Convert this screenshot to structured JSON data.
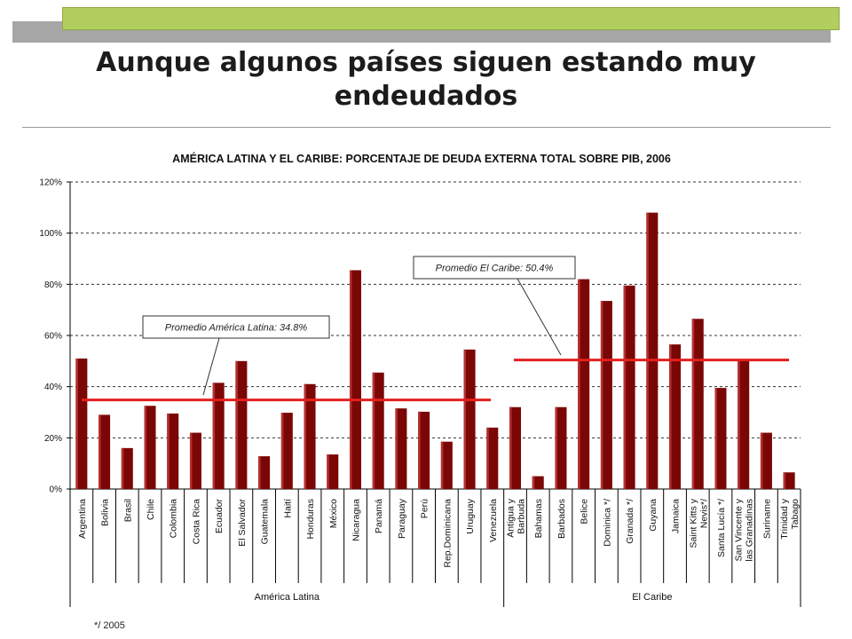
{
  "slide": {
    "title": "Aunque algunos países siguen estando muy endeudados",
    "footnote": "*/ 2005"
  },
  "colors": {
    "bar": "#7b0606",
    "bar_highlight": "#b43030",
    "average_line": "#e32020",
    "banner": "#b2ce5f",
    "banner_shadow": "#a6a6a6"
  },
  "chart_data": {
    "type": "bar",
    "title": "AMÉRICA LATINA Y EL CARIBE: PORCENTAJE DE DEUDA EXTERNA TOTAL SOBRE PIB, 2006",
    "ylim": [
      0,
      120
    ],
    "yticks": [
      0,
      20,
      40,
      60,
      80,
      100,
      120
    ],
    "ytick_labels": [
      "0%",
      "20%",
      "40%",
      "60%",
      "80%",
      "100%",
      "120%"
    ],
    "grid": true,
    "categories": [
      "Argentina",
      "Bolivia",
      "Brasil",
      "Chile",
      "Colombia",
      "Costa Rica",
      "Ecuador",
      "El Salvador",
      "Guatemala",
      "Haití",
      "Honduras",
      "México",
      "Nicaragua",
      "Panamá",
      "Paraguay",
      "Perú",
      "Rep.Dominicana",
      "Uruguay",
      "Venezuela",
      "Antigua y Barbuda",
      "Bahamas",
      "Barbados",
      "Belice",
      "Dominica */",
      "Granada */",
      "Guyana",
      "Jamaica",
      "Saint Kitts y Nevis*/",
      "Santa Lucía */",
      "San Vincente y las Granadinas",
      "Suriname",
      "Trinidad y Tabago"
    ],
    "category_lines": [
      [
        "Argentina"
      ],
      [
        "Bolivia"
      ],
      [
        "Brasil"
      ],
      [
        "Chile"
      ],
      [
        "Colombia"
      ],
      [
        "Costa Rica"
      ],
      [
        "Ecuador"
      ],
      [
        "El Salvador"
      ],
      [
        "Guatemala"
      ],
      [
        "Haití"
      ],
      [
        "Honduras"
      ],
      [
        "México"
      ],
      [
        "Nicaragua"
      ],
      [
        "Panamá"
      ],
      [
        "Paraguay"
      ],
      [
        "Perú"
      ],
      [
        "Rep.Dominicana"
      ],
      [
        "Uruguay"
      ],
      [
        "Venezuela"
      ],
      [
        "Antigua y",
        "Barbuda"
      ],
      [
        "Bahamas"
      ],
      [
        "Barbados"
      ],
      [
        "Belice"
      ],
      [
        "Dominica */"
      ],
      [
        "Granada */"
      ],
      [
        "Guyana"
      ],
      [
        "Jamaica"
      ],
      [
        "Saint Kitts y",
        "Nevis*/"
      ],
      [
        "Santa Lucía */"
      ],
      [
        "San Vincente y",
        "las Granadinas"
      ],
      [
        "Suriname"
      ],
      [
        "Trinidad y",
        "Tabago"
      ]
    ],
    "values": [
      51,
      29,
      16,
      32.5,
      29.5,
      22,
      41.5,
      50,
      12.8,
      29.8,
      41,
      13.5,
      85.5,
      45.5,
      31.5,
      30.2,
      18.5,
      54.5,
      24,
      32,
      5,
      32,
      82,
      73.5,
      79.5,
      108,
      56.5,
      66.5,
      39.5,
      50,
      22,
      6.5
    ],
    "groups": [
      {
        "name": "América Latina",
        "start": 0,
        "end": 18
      },
      {
        "name": "El Caribe",
        "start": 19,
        "end": 31
      }
    ],
    "averages": [
      {
        "label": "Promedio América Latina: 34.8%",
        "value": 34.8,
        "group": 0
      },
      {
        "label": "Promedio El Caribe: 50.4%",
        "value": 50.4,
        "group": 1
      }
    ]
  }
}
